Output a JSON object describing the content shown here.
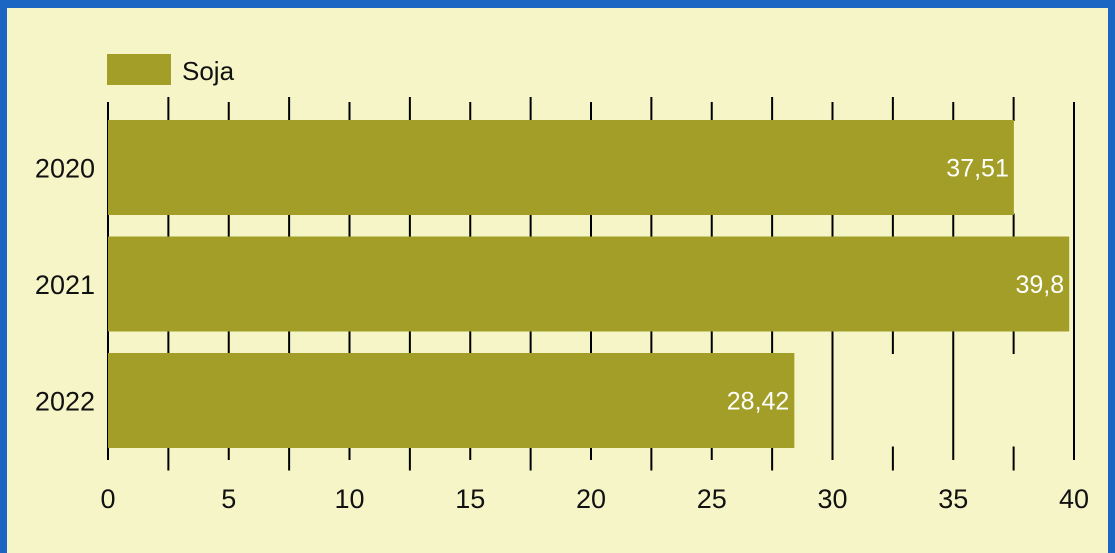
{
  "chart_data": {
    "type": "bar",
    "orientation": "horizontal",
    "categories": [
      "2020",
      "2021",
      "2022"
    ],
    "series": [
      {
        "name": "Soja",
        "values": [
          37.51,
          39.8,
          28.42
        ],
        "labels": [
          "37,51",
          "39,8",
          "28,42"
        ]
      }
    ],
    "xlim": [
      0,
      40
    ],
    "xticks": [
      0,
      5,
      10,
      15,
      20,
      25,
      30,
      35,
      40
    ],
    "xtick_labels": [
      "0",
      "5",
      "10",
      "15",
      "20",
      "25",
      "30",
      "35",
      "40"
    ],
    "grid": true,
    "legend_position": "top-left"
  },
  "colors": {
    "frame": "#1a66c2",
    "background": "#f5f5c8",
    "bar": "#a29e27",
    "grid": "#000000"
  }
}
